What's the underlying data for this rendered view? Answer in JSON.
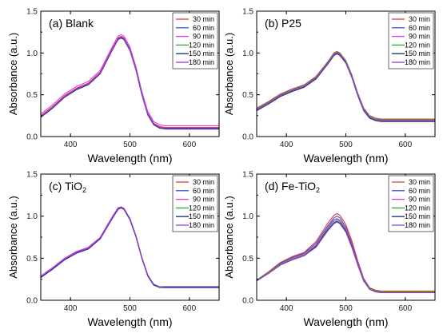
{
  "figure": {
    "name": "four-panel absorbance spectra"
  },
  "legend_labels": [
    "30 min",
    "60 min",
    "90 min",
    "120 min",
    "150 min",
    "180 min"
  ],
  "series_colors": [
    "#ef3b3b",
    "#3b4fd8",
    "#e23be0",
    "#2ea82e",
    "#1c2a7a",
    "#9a3bd8"
  ],
  "chart_data": [
    {
      "type": "line",
      "panel_label": "(a)",
      "panel_name": "Blank",
      "panel_sub": "",
      "xlabel": "Wavelength (nm)",
      "ylabel": "Absorbance (a.u.)",
      "xlim": [
        350,
        650
      ],
      "ylim": [
        0,
        1.5
      ],
      "xticks": [
        "400",
        "500",
        "600"
      ],
      "yticks": [
        "0.0",
        "0.5",
        "1.0",
        "1.5"
      ],
      "grid": false,
      "legend_position": "top-right",
      "wavelengths": [
        350,
        370,
        390,
        410,
        430,
        450,
        470,
        480,
        485,
        490,
        500,
        510,
        520,
        530,
        540,
        550,
        560,
        580,
        600,
        620,
        650
      ],
      "series": [
        {
          "name": "30 min",
          "values": [
            0.25,
            0.36,
            0.49,
            0.58,
            0.64,
            0.77,
            1.05,
            1.18,
            1.2,
            1.18,
            1.05,
            0.82,
            0.52,
            0.28,
            0.16,
            0.12,
            0.11,
            0.11,
            0.11,
            0.11,
            0.11
          ]
        },
        {
          "name": "60 min",
          "values": [
            0.24,
            0.35,
            0.48,
            0.57,
            0.63,
            0.76,
            1.04,
            1.17,
            1.19,
            1.17,
            1.04,
            0.81,
            0.51,
            0.27,
            0.15,
            0.11,
            0.1,
            0.1,
            0.1,
            0.1,
            0.1
          ]
        },
        {
          "name": "90 min",
          "values": [
            0.27,
            0.38,
            0.51,
            0.6,
            0.66,
            0.79,
            1.07,
            1.2,
            1.22,
            1.2,
            1.07,
            0.84,
            0.54,
            0.3,
            0.18,
            0.14,
            0.13,
            0.13,
            0.13,
            0.13,
            0.13
          ]
        },
        {
          "name": "120 min",
          "values": [
            0.24,
            0.35,
            0.48,
            0.57,
            0.63,
            0.76,
            1.04,
            1.17,
            1.19,
            1.17,
            1.04,
            0.81,
            0.51,
            0.27,
            0.15,
            0.11,
            0.1,
            0.1,
            0.1,
            0.1,
            0.1
          ]
        },
        {
          "name": "150 min",
          "values": [
            0.23,
            0.34,
            0.47,
            0.56,
            0.62,
            0.75,
            1.03,
            1.16,
            1.18,
            1.16,
            1.03,
            0.8,
            0.5,
            0.26,
            0.14,
            0.1,
            0.09,
            0.09,
            0.09,
            0.09,
            0.09
          ]
        },
        {
          "name": "180 min",
          "values": [
            0.24,
            0.35,
            0.48,
            0.57,
            0.63,
            0.76,
            1.04,
            1.17,
            1.19,
            1.17,
            1.04,
            0.81,
            0.51,
            0.27,
            0.15,
            0.11,
            0.1,
            0.1,
            0.1,
            0.1,
            0.1
          ]
        }
      ]
    },
    {
      "type": "line",
      "panel_label": "(b)",
      "panel_name": "P25",
      "panel_sub": "",
      "xlabel": "Wavelength (nm)",
      "ylabel": "Absorbance (a.u.)",
      "xlim": [
        350,
        650
      ],
      "ylim": [
        0,
        1.5
      ],
      "xticks": [
        "400",
        "500",
        "600"
      ],
      "yticks": [
        "0.0",
        "0.5",
        "1.0",
        "1.5"
      ],
      "grid": false,
      "legend_position": "top-right",
      "wavelengths": [
        350,
        370,
        390,
        410,
        430,
        450,
        470,
        480,
        485,
        490,
        500,
        510,
        520,
        530,
        540,
        550,
        560,
        580,
        600,
        620,
        650
      ],
      "series": [
        {
          "name": "30 min",
          "values": [
            0.34,
            0.42,
            0.51,
            0.57,
            0.62,
            0.72,
            0.9,
            1.0,
            1.02,
            1.0,
            0.91,
            0.74,
            0.52,
            0.34,
            0.25,
            0.22,
            0.21,
            0.21,
            0.21,
            0.21,
            0.21
          ]
        },
        {
          "name": "60 min",
          "values": [
            0.33,
            0.41,
            0.5,
            0.56,
            0.61,
            0.71,
            0.89,
            0.99,
            1.01,
            0.99,
            0.9,
            0.73,
            0.51,
            0.33,
            0.24,
            0.21,
            0.2,
            0.2,
            0.2,
            0.2,
            0.2
          ]
        },
        {
          "name": "90 min",
          "values": [
            0.32,
            0.4,
            0.49,
            0.55,
            0.6,
            0.7,
            0.88,
            0.98,
            1.0,
            0.98,
            0.89,
            0.72,
            0.5,
            0.32,
            0.23,
            0.2,
            0.19,
            0.19,
            0.19,
            0.19,
            0.19
          ]
        },
        {
          "name": "120 min",
          "values": [
            0.33,
            0.41,
            0.5,
            0.56,
            0.61,
            0.71,
            0.89,
            0.99,
            1.01,
            0.99,
            0.9,
            0.73,
            0.51,
            0.33,
            0.24,
            0.21,
            0.2,
            0.2,
            0.2,
            0.2,
            0.2
          ]
        },
        {
          "name": "150 min",
          "values": [
            0.31,
            0.39,
            0.48,
            0.54,
            0.59,
            0.69,
            0.87,
            0.97,
            0.99,
            0.97,
            0.88,
            0.71,
            0.49,
            0.31,
            0.22,
            0.19,
            0.18,
            0.18,
            0.18,
            0.18,
            0.18
          ]
        },
        {
          "name": "180 min",
          "values": [
            0.32,
            0.4,
            0.49,
            0.55,
            0.6,
            0.7,
            0.88,
            0.98,
            1.0,
            0.98,
            0.89,
            0.72,
            0.5,
            0.32,
            0.23,
            0.2,
            0.19,
            0.19,
            0.19,
            0.19,
            0.19
          ]
        }
      ]
    },
    {
      "type": "line",
      "panel_label": "(c)",
      "panel_name": "TiO",
      "panel_sub": "2",
      "xlabel": "Wavelength (nm)",
      "ylabel": "Absorbance (a.u.)",
      "xlim": [
        350,
        650
      ],
      "ylim": [
        0,
        1.5
      ],
      "xticks": [
        "400",
        "500",
        "600"
      ],
      "yticks": [
        "0.0",
        "0.5",
        "1.0",
        "1.5"
      ],
      "grid": false,
      "legend_position": "top-right",
      "wavelengths": [
        350,
        370,
        390,
        410,
        430,
        450,
        470,
        480,
        485,
        490,
        500,
        510,
        520,
        530,
        540,
        550,
        560,
        580,
        600,
        620,
        650
      ],
      "series": [
        {
          "name": "30 min",
          "values": [
            0.28,
            0.38,
            0.49,
            0.57,
            0.62,
            0.74,
            0.98,
            1.09,
            1.11,
            1.09,
            0.97,
            0.77,
            0.51,
            0.3,
            0.19,
            0.16,
            0.16,
            0.16,
            0.16,
            0.16,
            0.16
          ]
        },
        {
          "name": "60 min",
          "values": [
            0.27,
            0.37,
            0.48,
            0.56,
            0.61,
            0.73,
            0.97,
            1.08,
            1.1,
            1.08,
            0.96,
            0.76,
            0.5,
            0.29,
            0.18,
            0.15,
            0.15,
            0.15,
            0.15,
            0.15,
            0.15
          ]
        },
        {
          "name": "90 min",
          "values": [
            0.29,
            0.39,
            0.5,
            0.58,
            0.63,
            0.75,
            0.99,
            1.1,
            1.11,
            1.09,
            0.97,
            0.77,
            0.51,
            0.3,
            0.19,
            0.16,
            0.16,
            0.16,
            0.16,
            0.16,
            0.16
          ]
        },
        {
          "name": "120 min",
          "values": [
            0.28,
            0.38,
            0.49,
            0.57,
            0.62,
            0.74,
            0.98,
            1.09,
            1.1,
            1.08,
            0.96,
            0.76,
            0.5,
            0.29,
            0.18,
            0.15,
            0.15,
            0.15,
            0.15,
            0.15,
            0.15
          ]
        },
        {
          "name": "150 min",
          "values": [
            0.27,
            0.37,
            0.48,
            0.56,
            0.61,
            0.73,
            0.97,
            1.08,
            1.1,
            1.08,
            0.96,
            0.76,
            0.5,
            0.29,
            0.18,
            0.16,
            0.16,
            0.16,
            0.16,
            0.16,
            0.16
          ]
        },
        {
          "name": "180 min",
          "values": [
            0.28,
            0.38,
            0.49,
            0.57,
            0.62,
            0.74,
            0.98,
            1.09,
            1.11,
            1.09,
            0.97,
            0.77,
            0.51,
            0.3,
            0.19,
            0.16,
            0.15,
            0.15,
            0.15,
            0.15,
            0.15
          ]
        }
      ]
    },
    {
      "type": "line",
      "panel_label": "(d)",
      "panel_name": "Fe-TiO",
      "panel_sub": "2",
      "xlabel": "Wavelength (nm)",
      "ylabel": "Absorbance (a.u.)",
      "xlim": [
        350,
        650
      ],
      "ylim": [
        0,
        1.5
      ],
      "xticks": [
        "400",
        "500",
        "600"
      ],
      "yticks": [
        "0.0",
        "0.5",
        "1.0",
        "1.5"
      ],
      "grid": false,
      "legend_position": "top-right",
      "wavelengths": [
        350,
        370,
        390,
        410,
        430,
        450,
        470,
        480,
        485,
        490,
        500,
        510,
        520,
        530,
        540,
        550,
        560,
        580,
        600,
        620,
        650
      ],
      "series": [
        {
          "name": "30 min",
          "values": [
            0.24,
            0.34,
            0.45,
            0.52,
            0.57,
            0.7,
            0.92,
            1.01,
            1.03,
            1.01,
            0.9,
            0.71,
            0.47,
            0.26,
            0.15,
            0.12,
            0.11,
            0.11,
            0.11,
            0.11,
            0.11
          ]
        },
        {
          "name": "60 min",
          "values": [
            0.24,
            0.33,
            0.44,
            0.51,
            0.56,
            0.68,
            0.89,
            0.98,
            1.0,
            0.98,
            0.87,
            0.68,
            0.45,
            0.25,
            0.14,
            0.11,
            0.1,
            0.1,
            0.1,
            0.1,
            0.1
          ]
        },
        {
          "name": "90 min",
          "values": [
            0.24,
            0.33,
            0.43,
            0.5,
            0.55,
            0.66,
            0.87,
            0.96,
            0.97,
            0.95,
            0.85,
            0.66,
            0.44,
            0.24,
            0.14,
            0.11,
            0.1,
            0.1,
            0.1,
            0.1,
            0.1
          ]
        },
        {
          "name": "120 min",
          "values": [
            0.24,
            0.33,
            0.43,
            0.49,
            0.54,
            0.65,
            0.86,
            0.94,
            0.96,
            0.94,
            0.83,
            0.65,
            0.43,
            0.24,
            0.14,
            0.11,
            0.1,
            0.1,
            0.1,
            0.1,
            0.1
          ]
        },
        {
          "name": "150 min",
          "values": [
            0.23,
            0.32,
            0.42,
            0.48,
            0.53,
            0.64,
            0.84,
            0.92,
            0.94,
            0.92,
            0.82,
            0.64,
            0.42,
            0.23,
            0.13,
            0.1,
            0.09,
            0.09,
            0.09,
            0.09,
            0.09
          ]
        },
        {
          "name": "180 min",
          "values": [
            0.23,
            0.32,
            0.42,
            0.48,
            0.53,
            0.63,
            0.83,
            0.91,
            0.93,
            0.91,
            0.81,
            0.63,
            0.42,
            0.23,
            0.13,
            0.1,
            0.09,
            0.09,
            0.09,
            0.09,
            0.09
          ]
        }
      ]
    }
  ]
}
